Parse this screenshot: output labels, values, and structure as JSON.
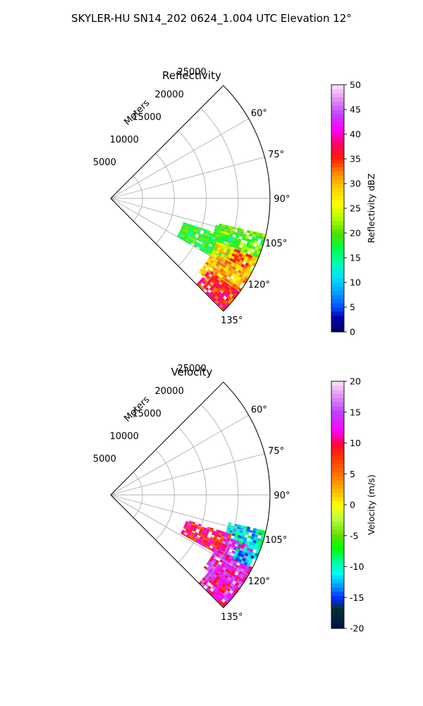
{
  "figure": {
    "suptitle": "SKYLER-HU  SN14_202  0624_1.004 UTC Elevation 12°"
  },
  "chart_data": [
    {
      "type": "polar-sector",
      "title": "Reflectivity",
      "radial_label": "Meters",
      "theta_range_deg": [
        45,
        135
      ],
      "theta_direction": "clockwise from north",
      "r_range": [
        0,
        25000
      ],
      "r_ticks": [
        5000,
        10000,
        15000,
        20000,
        25000
      ],
      "r_tick_labels": [
        "5000",
        "10000",
        "15000",
        "20000",
        "25000"
      ],
      "theta_ticks": [
        60,
        75,
        90,
        105,
        120,
        135
      ],
      "theta_tick_labels": [
        "60°",
        "75°",
        "90°",
        "105°",
        "120°",
        "135°"
      ],
      "grid": true,
      "colorbar": {
        "label": "Reflectivity dBZ",
        "range": [
          0,
          50
        ],
        "ticks": [
          0,
          5,
          10,
          15,
          20,
          25,
          30,
          35,
          40,
          45,
          50
        ],
        "stops": [
          {
            "v": 0,
            "color": "#000060"
          },
          {
            "v": 3,
            "color": "#0000b0"
          },
          {
            "v": 5,
            "color": "#0050ff"
          },
          {
            "v": 8,
            "color": "#00a0ff"
          },
          {
            "v": 11,
            "color": "#00e0ff"
          },
          {
            "v": 14,
            "color": "#00ffb0"
          },
          {
            "v": 17,
            "color": "#00ff40"
          },
          {
            "v": 20,
            "color": "#50e000"
          },
          {
            "v": 23,
            "color": "#b0ff00"
          },
          {
            "v": 26,
            "color": "#ffff00"
          },
          {
            "v": 29,
            "color": "#ffd000"
          },
          {
            "v": 32,
            "color": "#ff9000"
          },
          {
            "v": 35,
            "color": "#ff2000"
          },
          {
            "v": 38,
            "color": "#ff0060"
          },
          {
            "v": 41,
            "color": "#ff00ff"
          },
          {
            "v": 44,
            "color": "#c040ff"
          },
          {
            "v": 47,
            "color": "#e090f0"
          },
          {
            "v": 50,
            "color": "#ffe0ff"
          }
        ]
      },
      "regions": [
        {
          "theta": [
            103,
            113
          ],
          "r": [
            17000,
            25000
          ],
          "value": 20
        },
        {
          "theta": [
            108,
            120
          ],
          "r": [
            12000,
            21000
          ],
          "value": 18
        },
        {
          "theta": [
            112,
            122
          ],
          "r": [
            18000,
            25000
          ],
          "value": 28
        },
        {
          "theta": [
            118,
            130
          ],
          "r": [
            18000,
            25000
          ],
          "value": 30
        },
        {
          "theta": [
            126,
            134
          ],
          "r": [
            19000,
            25000
          ],
          "value": 36
        },
        {
          "theta": [
            112,
            117
          ],
          "r": [
            21000,
            24000
          ],
          "value": 34
        }
      ]
    },
    {
      "type": "polar-sector",
      "title": "Velocity",
      "radial_label": "Meters",
      "theta_range_deg": [
        45,
        135
      ],
      "theta_direction": "clockwise from north",
      "r_range": [
        0,
        25000
      ],
      "r_ticks": [
        5000,
        10000,
        15000,
        20000,
        25000
      ],
      "r_tick_labels": [
        "5000",
        "10000",
        "15000",
        "20000",
        "25000"
      ],
      "theta_ticks": [
        60,
        75,
        90,
        105,
        120,
        135
      ],
      "theta_tick_labels": [
        "60°",
        "75°",
        "90°",
        "105°",
        "120°",
        "135°"
      ],
      "grid": true,
      "colorbar": {
        "label": "Velocity (m/s)",
        "range": [
          -20,
          20
        ],
        "ticks": [
          -20,
          -15,
          -10,
          -5,
          0,
          5,
          10,
          15,
          20
        ],
        "stops": [
          {
            "v": -20,
            "color": "#001050"
          },
          {
            "v": -17,
            "color": "#003030"
          },
          {
            "v": -15,
            "color": "#0030ff"
          },
          {
            "v": -13,
            "color": "#00a0ff"
          },
          {
            "v": -11,
            "color": "#00ffff"
          },
          {
            "v": -9,
            "color": "#00ff90"
          },
          {
            "v": -7,
            "color": "#00ff00"
          },
          {
            "v": -5,
            "color": "#60e000"
          },
          {
            "v": -2,
            "color": "#c0ff40"
          },
          {
            "v": 0,
            "color": "#ffff00"
          },
          {
            "v": 2,
            "color": "#ffc000"
          },
          {
            "v": 5,
            "color": "#ff7000"
          },
          {
            "v": 8,
            "color": "#ff3000"
          },
          {
            "v": 10,
            "color": "#ff0040"
          },
          {
            "v": 12,
            "color": "#ff00ff"
          },
          {
            "v": 15,
            "color": "#c040ff"
          },
          {
            "v": 18,
            "color": "#e0a0f0"
          },
          {
            "v": 20,
            "color": "#ffe0ff"
          }
        ]
      },
      "regions": [
        {
          "theta": [
            103,
            113
          ],
          "r": [
            19000,
            25000
          ],
          "value": -11
        },
        {
          "theta": [
            108,
            118
          ],
          "r": [
            12500,
            20000
          ],
          "value": 9
        },
        {
          "theta": [
            110,
            119
          ],
          "r": [
            19000,
            24000
          ],
          "value": 14
        },
        {
          "theta": [
            117,
            127
          ],
          "r": [
            18500,
            25000
          ],
          "value": 13
        },
        {
          "theta": [
            126,
            134
          ],
          "r": [
            19500,
            25000
          ],
          "value": 13
        },
        {
          "theta": [
            112,
            117
          ],
          "r": [
            21500,
            24500
          ],
          "value": -12
        },
        {
          "theta": [
            127,
            131
          ],
          "r": [
            21000,
            23500
          ],
          "value": 10
        }
      ]
    }
  ]
}
